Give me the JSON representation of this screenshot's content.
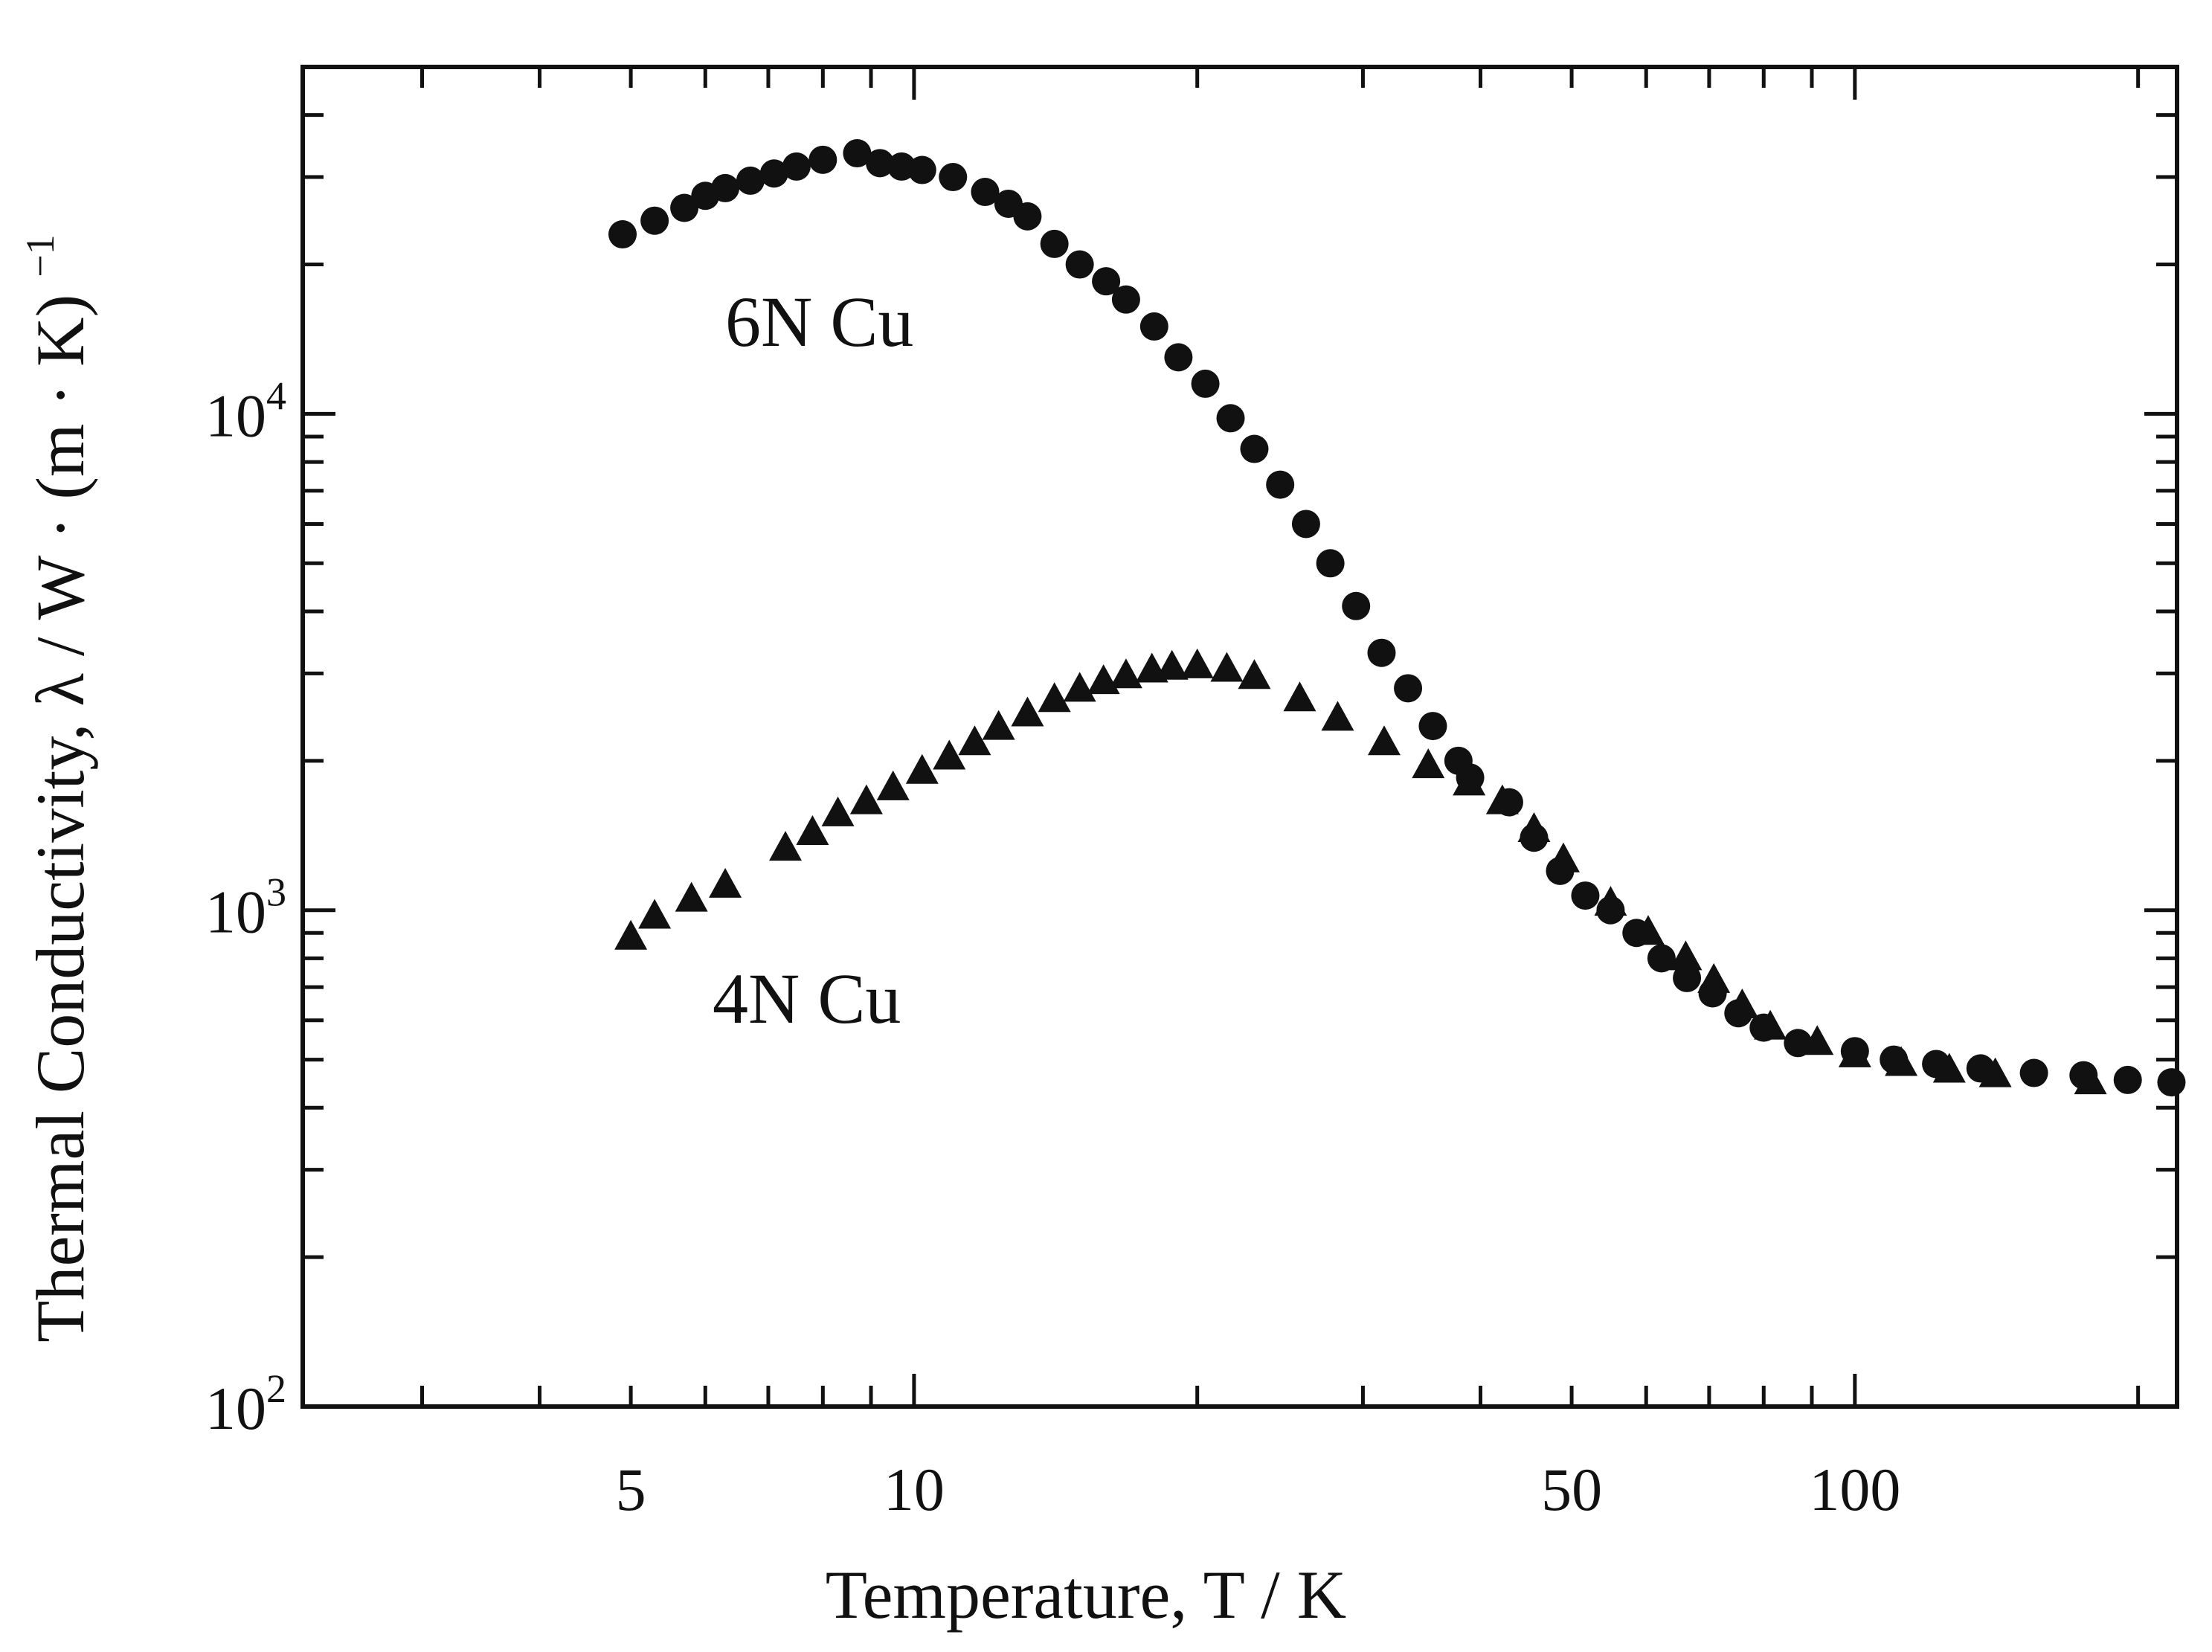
{
  "chart_data": {
    "type": "scatter",
    "title": "",
    "xlabel": "Temperature,  T / K",
    "ylabel": "Thermal Conductivity,  λ / W · (m · K)",
    "ylabel_exponent": "−1",
    "xscale": "log",
    "yscale": "log",
    "xlim": [
      2.24,
      220
    ],
    "ylim": [
      100,
      50000
    ],
    "x_tick_labels": [
      "5",
      "10",
      "50",
      "100"
    ],
    "x_tick_values": [
      5,
      10,
      50,
      100
    ],
    "y_tick_labels": [
      {
        "value": 100,
        "base": "10",
        "exp": "2"
      },
      {
        "value": 1000,
        "base": "10",
        "exp": "3"
      },
      {
        "value": 10000,
        "base": "10",
        "exp": "4"
      }
    ],
    "series": [
      {
        "name": "6N Cu",
        "label": "6N Cu",
        "marker": "circle",
        "x": [
          4.9,
          5.3,
          5.7,
          6.0,
          6.3,
          6.7,
          7.1,
          7.5,
          8.0,
          8.7,
          9.2,
          9.7,
          10.2,
          11.0,
          11.9,
          12.6,
          13.2,
          14.1,
          15.0,
          16.0,
          16.8,
          18.0,
          19.1,
          20.4,
          21.7,
          23.0,
          24.5,
          26.1,
          27.7,
          29.5,
          31.4,
          33.5,
          35.6,
          37.9,
          39.0,
          42.9,
          45.6,
          48.6,
          51.7,
          55.0,
          58.6,
          62.3,
          66.3,
          70.6,
          75.2,
          80.0,
          87.0,
          100,
          110,
          122,
          136,
          155,
          175,
          195,
          217
        ],
        "y": [
          23000,
          24500,
          26000,
          27500,
          28500,
          29500,
          30500,
          31500,
          32500,
          33500,
          32000,
          31500,
          31000,
          30000,
          28000,
          26500,
          25000,
          22000,
          20000,
          18500,
          17000,
          15000,
          13000,
          11500,
          9800,
          8500,
          7200,
          6000,
          5000,
          4100,
          3300,
          2800,
          2350,
          2000,
          1850,
          1650,
          1400,
          1200,
          1070,
          1000,
          900,
          800,
          730,
          680,
          620,
          580,
          540,
          520,
          500,
          490,
          480,
          470,
          465,
          455,
          450
        ]
      },
      {
        "name": "4N Cu",
        "label": "4N Cu",
        "marker": "triangle",
        "x": [
          5.0,
          5.3,
          5.8,
          6.3,
          7.3,
          7.8,
          8.3,
          8.9,
          9.5,
          10.2,
          10.9,
          11.6,
          12.3,
          13.2,
          14.1,
          15.0,
          15.9,
          16.8,
          17.9,
          18.8,
          20.0,
          21.5,
          23.0,
          25.7,
          28.2,
          31.6,
          35.2,
          38.9,
          42.2,
          45.6,
          49.0,
          55.0,
          60.3,
          66.1,
          70.8,
          75.9,
          81.3,
          91.2,
          100,
          112,
          126,
          141,
          178
        ],
        "y": [
          880,
          970,
          1050,
          1120,
          1330,
          1430,
          1560,
          1650,
          1760,
          1900,
          2030,
          2170,
          2330,
          2480,
          2650,
          2780,
          2880,
          2960,
          3040,
          3080,
          3100,
          3050,
          2950,
          2660,
          2430,
          2170,
          1950,
          1800,
          1650,
          1450,
          1260,
          1030,
          900,
          800,
          720,
          640,
          580,
          540,
          510,
          490,
          475,
          465,
          450
        ]
      }
    ]
  }
}
